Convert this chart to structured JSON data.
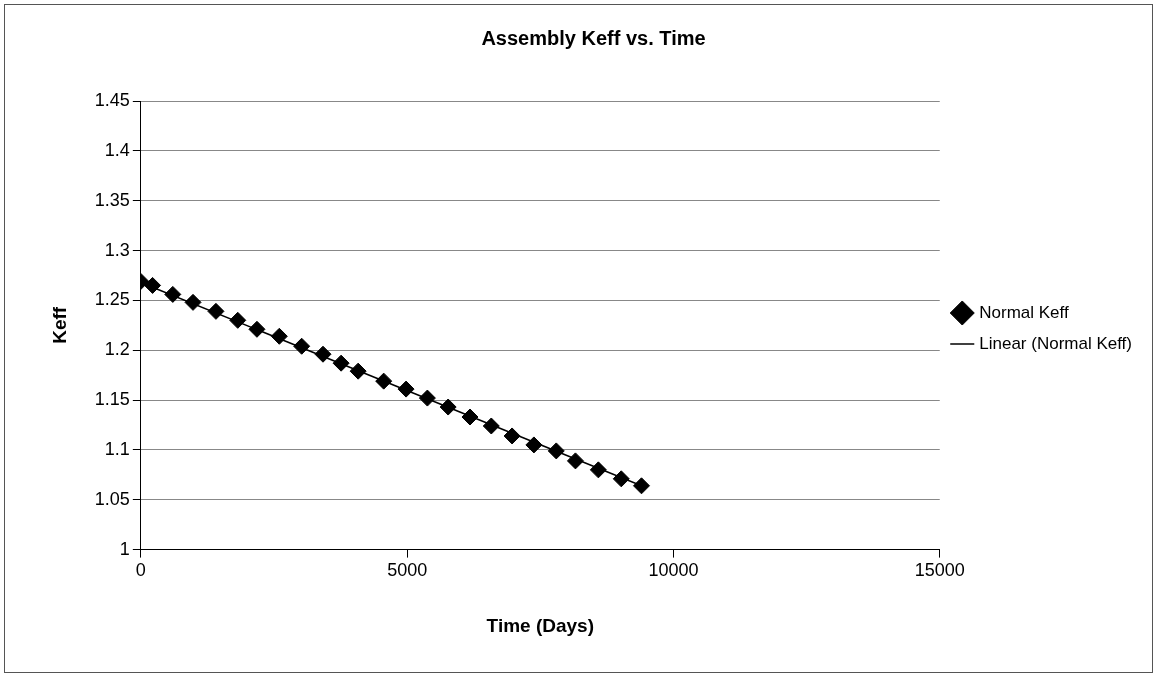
{
  "chart_data": {
    "type": "scatter",
    "title": "Assembly Keff vs. Time",
    "xlabel": "Time (Days)",
    "ylabel": "Keff",
    "xlim": [
      0,
      15000
    ],
    "xticks": [
      0,
      5000,
      10000,
      15000
    ],
    "ylim": [
      1,
      1.45
    ],
    "yticks": [
      1,
      1.05,
      1.1,
      1.15,
      1.2,
      1.25,
      1.3,
      1.35,
      1.4,
      1.45
    ],
    "grid": "y",
    "legend": "right",
    "series": [
      {
        "name": "Normal Keff",
        "color": "#000000",
        "marker": "diamond",
        "x": [
          0,
          220,
          600,
          980,
          1410,
          1820,
          2180,
          2600,
          3020,
          3420,
          3760,
          4080,
          4560,
          4980,
          5380,
          5770,
          6180,
          6580,
          6970,
          7380,
          7800,
          8160,
          8590,
          9020,
          9400
        ],
        "values": [
          1.269,
          1.265,
          1.256,
          1.248,
          1.239,
          1.23,
          1.221,
          1.214,
          1.204,
          1.196,
          1.187,
          1.179,
          1.169,
          1.161,
          1.152,
          1.143,
          1.133,
          1.124,
          1.114,
          1.105,
          1.099,
          1.089,
          1.08,
          1.071,
          1.064
        ]
      },
      {
        "name": "Linear (Normal Keff)",
        "type": "line",
        "marker": "none",
        "color": "#000000",
        "x": [
          0,
          9400
        ],
        "values": [
          1.268,
          1.064
        ]
      }
    ]
  }
}
